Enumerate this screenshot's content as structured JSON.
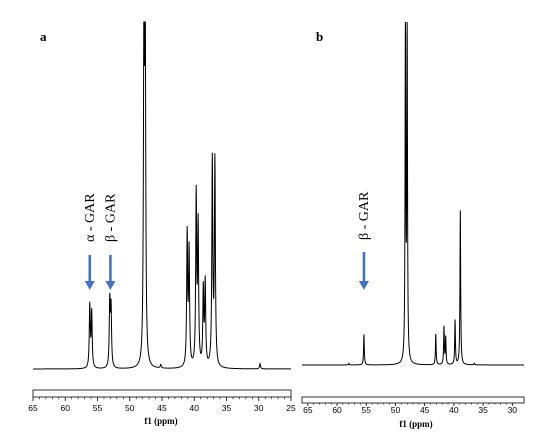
{
  "chart_data": [
    {
      "type": "line",
      "panel_label": "a",
      "xlabel": "f1 (ppm)",
      "xlim": [
        65,
        25
      ],
      "x_ticks": [
        65,
        60,
        55,
        50,
        45,
        40,
        35,
        30,
        25
      ],
      "grid": false,
      "annotations": [
        {
          "text": "α - GAR",
          "x": 56.2,
          "arrow": true
        },
        {
          "text": "β - GAR",
          "x": 53.0,
          "arrow": true
        }
      ],
      "peaks": [
        {
          "x": 56.2,
          "height": 0.18
        },
        {
          "x": 55.9,
          "height": 0.16
        },
        {
          "x": 53.1,
          "height": 0.19
        },
        {
          "x": 52.9,
          "height": 0.17
        },
        {
          "x": 47.8,
          "height": 1.0
        },
        {
          "x": 47.6,
          "height": 0.95
        },
        {
          "x": 41.1,
          "height": 0.38
        },
        {
          "x": 40.8,
          "height": 0.33
        },
        {
          "x": 39.7,
          "height": 0.49
        },
        {
          "x": 39.4,
          "height": 0.4
        },
        {
          "x": 38.6,
          "height": 0.22
        },
        {
          "x": 38.3,
          "height": 0.24
        },
        {
          "x": 37.2,
          "height": 0.59
        },
        {
          "x": 36.8,
          "height": 0.59
        },
        {
          "x": 45.2,
          "height": 0.01
        },
        {
          "x": 29.8,
          "height": 0.015
        }
      ]
    },
    {
      "type": "line",
      "panel_label": "b",
      "xlabel": "f1 (ppm)",
      "xlim": [
        66,
        28
      ],
      "x_ticks": [
        65,
        60,
        55,
        50,
        45,
        40,
        35,
        30
      ],
      "grid": false,
      "annotations": [
        {
          "text": "β - GAR",
          "x": 55.4,
          "arrow": true
        }
      ],
      "peaks": [
        {
          "x": 55.4,
          "height": 0.09
        },
        {
          "x": 48.3,
          "height": 1.0
        },
        {
          "x": 48.0,
          "height": 0.98
        },
        {
          "x": 43.1,
          "height": 0.09
        },
        {
          "x": 41.7,
          "height": 0.11
        },
        {
          "x": 41.4,
          "height": 0.08
        },
        {
          "x": 39.8,
          "height": 0.13
        },
        {
          "x": 38.9,
          "height": 0.45
        },
        {
          "x": 58.0,
          "height": 0.005
        },
        {
          "x": 36.5,
          "height": 0.005
        }
      ]
    }
  ]
}
